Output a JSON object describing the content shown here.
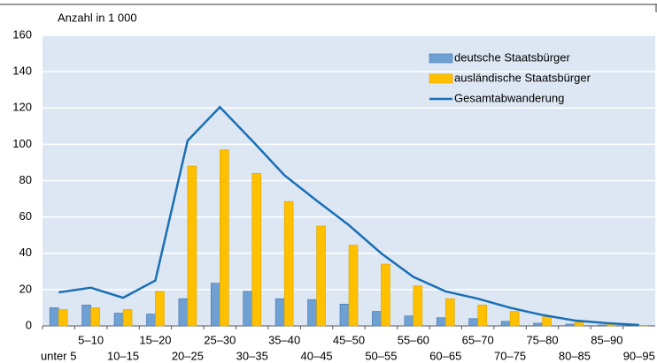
{
  "chart_data": {
    "type": "bar",
    "y_label": "Anzahl in 1 000",
    "categories": [
      "unter 5",
      "5–10",
      "10–15",
      "15–20",
      "20–25",
      "25–30",
      "30–35",
      "35–40",
      "40–45",
      "45–50",
      "50–55",
      "55–60",
      "60–65",
      "65–70",
      "70–75",
      "75–80",
      "80–85",
      "85–90",
      "90–95"
    ],
    "series": [
      {
        "name": "deutsche Staatsbürger",
        "type": "bar",
        "color": "#6fa0d4",
        "values": [
          10,
          11.5,
          7,
          6.5,
          15,
          23.5,
          19,
          15,
          14.5,
          12,
          8,
          5.5,
          4.5,
          4,
          2.5,
          1.5,
          1,
          0.5,
          0.2
        ]
      },
      {
        "name": "ausländische Staatsbürger",
        "type": "bar",
        "color": "#ffc000",
        "values": [
          9,
          10,
          9,
          19,
          88,
          97,
          84,
          68.5,
          55,
          44.5,
          34,
          22,
          15,
          11.5,
          8,
          5,
          2,
          1,
          0.3
        ]
      },
      {
        "name": "Gesamtabwanderung",
        "type": "line",
        "color": "#1a6fb5",
        "values": [
          18.5,
          21,
          15.5,
          25,
          102,
          120.5,
          102,
          83,
          69,
          55.5,
          40,
          27,
          19,
          15,
          10,
          6,
          3,
          1.5,
          0.5
        ]
      }
    ],
    "ylim": [
      0,
      160
    ],
    "yticks": [
      0,
      20,
      40,
      60,
      80,
      100,
      120,
      140,
      160
    ],
    "grid": true,
    "legend": "top-right"
  }
}
